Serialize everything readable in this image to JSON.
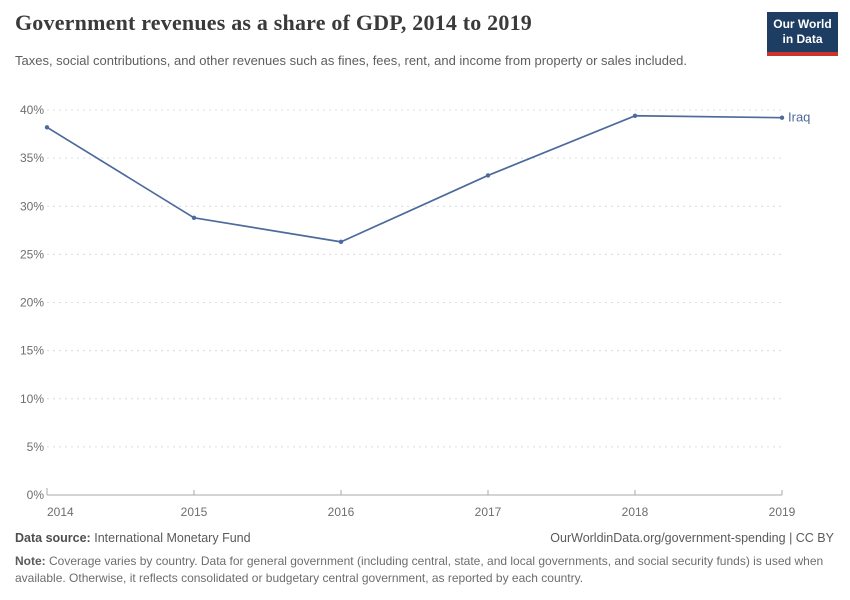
{
  "header": {
    "title": "Government revenues as a share of GDP, 2014 to 2019",
    "subtitle": "Taxes, social contributions, and other revenues such as fines, fees, rent, and income from property or sales included.",
    "logo": {
      "line1": "Our World",
      "line2": "in Data"
    }
  },
  "chart_data": {
    "type": "line",
    "title": "Government revenues as a share of GDP, 2014 to 2019",
    "x": [
      2014,
      2015,
      2016,
      2017,
      2018,
      2019
    ],
    "series": [
      {
        "name": "Iraq",
        "values": [
          38.2,
          28.8,
          26.3,
          33.2,
          39.4,
          39.2
        ]
      }
    ],
    "xlabel": "",
    "ylabel": "",
    "ylim": [
      0,
      40
    ],
    "ytick_step": 5,
    "ytick_suffix": "%",
    "grid": true,
    "legend_position": "end-of-line"
  },
  "footer": {
    "source_label": "Data source:",
    "source_value": "International Monetary Fund",
    "link_text": "OurWorldinData.org/government-spending | CC BY",
    "note_label": "Note:",
    "note_text": "Coverage varies by country. Data for general government (including central, state, and local governments, and social security funds) is used when available. Otherwise, it reflects consolidated or budgetary central government, as reported by each country."
  },
  "colors": {
    "series": "#4C6A9C",
    "grid": "#dcdcdc",
    "axis": "#a8a8a8",
    "logo_bg": "#1d3d63",
    "logo_stripe": "#cc342b"
  }
}
